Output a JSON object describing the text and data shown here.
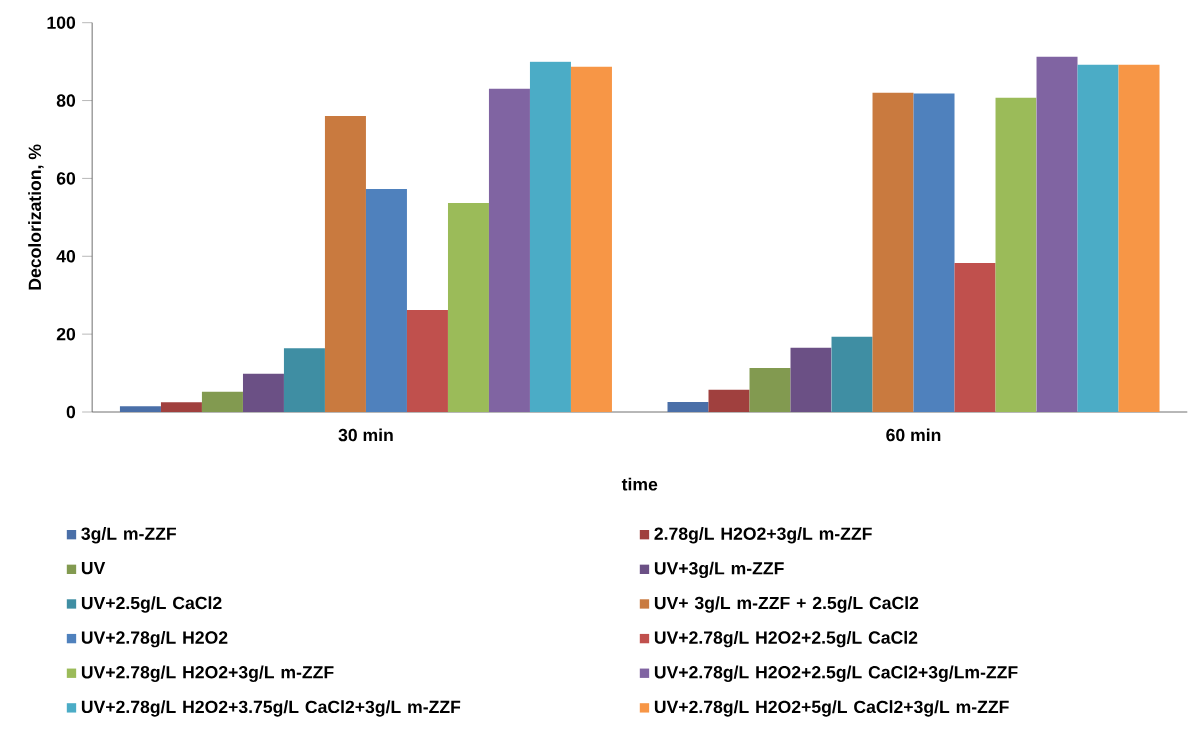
{
  "chart_data": {
    "type": "bar",
    "xlabel": "time",
    "ylabel": "Decolorization, %",
    "categories": [
      "30 min",
      "60 min"
    ],
    "ylim": [
      0,
      100
    ],
    "yticks": [
      0,
      20,
      40,
      60,
      80,
      100
    ],
    "legend": "bottom",
    "series": [
      {
        "name": "3g/L m-ZZF",
        "color": "#4a6fa8",
        "values": [
          1.5,
          2.6
        ]
      },
      {
        "name": "2.78g/L H2O2+3g/L m-ZZF",
        "color": "#a0403e",
        "values": [
          2.5,
          5.7
        ]
      },
      {
        "name": "UV",
        "color": "#829a50",
        "values": [
          5.2,
          11.3
        ]
      },
      {
        "name": "UV+3g/L m-ZZF",
        "color": "#6b5085",
        "values": [
          9.8,
          16.5
        ]
      },
      {
        "name": "UV+2.5g/L CaCl2",
        "color": "#3f8ea3",
        "values": [
          16.4,
          19.3
        ]
      },
      {
        "name": "UV+ 3g/L m-ZZF + 2.5g/L CaCl2",
        "color": "#c97a3f",
        "values": [
          76,
          82
        ]
      },
      {
        "name": "UV+2.78g/L H2O2",
        "color": "#4f81bd",
        "values": [
          57.3,
          81.8
        ]
      },
      {
        "name": "UV+2.78g/L H2O2+2.5g/L CaCl2",
        "color": "#c0504d",
        "values": [
          26.2,
          38.3
        ]
      },
      {
        "name": "UV+2.78g/L H2O2+3g/L m-ZZF",
        "color": "#9bbb59",
        "values": [
          53.7,
          80.7
        ]
      },
      {
        "name": "UV+2.78g/L H2O2+2.5g/L CaCl2+3g/Lm-ZZF",
        "color": "#8064a2",
        "values": [
          83,
          91.3
        ]
      },
      {
        "name": "UV+2.78g/L H2O2+3.75g/L CaCl2+3g/L m-ZZF",
        "color": "#4bacc6",
        "values": [
          90,
          89.2
        ]
      },
      {
        "name": "UV+2.78g/L H2O2+5g/L CaCl2+3g/L m-ZZF",
        "color": "#f79646",
        "values": [
          88.7,
          89.2
        ]
      }
    ]
  }
}
